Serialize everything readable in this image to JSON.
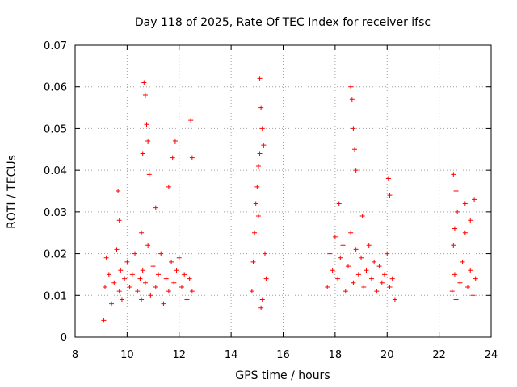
{
  "chart_data": {
    "type": "scatter",
    "title": "Day 118 of 2025, Rate Of TEC Index for receiver ifsc",
    "xlabel": "GPS time / hours",
    "ylabel": "ROTI / TECUs",
    "xlim": [
      8,
      24
    ],
    "ylim": [
      0,
      0.07
    ],
    "xticks": [
      "8",
      "10",
      "12",
      "14",
      "16",
      "18",
      "20",
      "22",
      "24"
    ],
    "yticks": [
      "0",
      "0.01",
      "0.02",
      "0.03",
      "0.04",
      "0.05",
      "0.06",
      "0.07"
    ],
    "grid": true,
    "marker": "plus",
    "color": "#ff0000",
    "series": [
      {
        "name": "ROTI",
        "x": [
          9.1,
          9.15,
          9.2,
          9.3,
          9.4,
          9.5,
          9.6,
          9.7,
          9.75,
          9.8,
          9.9,
          10.0,
          10.1,
          10.2,
          10.3,
          10.4,
          10.5,
          10.55,
          10.6,
          10.7,
          10.8,
          10.9,
          11.0,
          11.1,
          11.2,
          11.3,
          11.4,
          11.5,
          11.6,
          11.7,
          11.8,
          11.9,
          12.0,
          12.1,
          12.2,
          12.3,
          12.4,
          12.5,
          10.6,
          10.65,
          10.7,
          10.75,
          10.8,
          10.85,
          11.6,
          11.75,
          11.85,
          12.45,
          12.5,
          9.65,
          9.7,
          10.55,
          11.1,
          14.8,
          14.85,
          14.9,
          14.95,
          15.0,
          15.05,
          15.1,
          15.15,
          15.2,
          15.25,
          15.3,
          15.35,
          15.1,
          15.2,
          15.15,
          15.05,
          17.7,
          17.8,
          17.9,
          18.0,
          18.1,
          18.2,
          18.3,
          18.4,
          18.5,
          18.6,
          18.7,
          18.8,
          18.9,
          19.0,
          19.1,
          19.2,
          19.3,
          19.4,
          19.5,
          19.6,
          19.7,
          19.8,
          19.9,
          20.0,
          20.1,
          20.2,
          20.3,
          18.6,
          18.65,
          18.7,
          18.75,
          18.8,
          18.15,
          20.05,
          20.1,
          19.05,
          22.5,
          22.55,
          22.6,
          22.65,
          22.7,
          22.8,
          22.9,
          23.0,
          23.1,
          23.2,
          23.3,
          23.4,
          22.55,
          22.65,
          23.0,
          23.2,
          23.35,
          22.6
        ],
        "y": [
          0.004,
          0.012,
          0.019,
          0.015,
          0.008,
          0.013,
          0.021,
          0.011,
          0.016,
          0.009,
          0.014,
          0.018,
          0.012,
          0.015,
          0.02,
          0.011,
          0.014,
          0.009,
          0.016,
          0.013,
          0.022,
          0.01,
          0.017,
          0.012,
          0.015,
          0.02,
          0.008,
          0.014,
          0.011,
          0.018,
          0.013,
          0.016,
          0.019,
          0.012,
          0.015,
          0.009,
          0.014,
          0.011,
          0.044,
          0.061,
          0.058,
          0.051,
          0.047,
          0.039,
          0.036,
          0.043,
          0.047,
          0.052,
          0.043,
          0.035,
          0.028,
          0.025,
          0.031,
          0.011,
          0.018,
          0.025,
          0.032,
          0.036,
          0.041,
          0.044,
          0.055,
          0.05,
          0.046,
          0.02,
          0.014,
          0.062,
          0.009,
          0.007,
          0.029,
          0.012,
          0.02,
          0.016,
          0.024,
          0.014,
          0.019,
          0.022,
          0.011,
          0.017,
          0.025,
          0.013,
          0.021,
          0.015,
          0.019,
          0.012,
          0.016,
          0.022,
          0.014,
          0.018,
          0.011,
          0.017,
          0.013,
          0.015,
          0.02,
          0.012,
          0.014,
          0.009,
          0.06,
          0.057,
          0.05,
          0.045,
          0.04,
          0.032,
          0.038,
          0.034,
          0.029,
          0.011,
          0.022,
          0.015,
          0.009,
          0.03,
          0.013,
          0.018,
          0.025,
          0.012,
          0.016,
          0.01,
          0.014,
          0.039,
          0.035,
          0.032,
          0.028,
          0.033,
          0.026
        ]
      }
    ]
  }
}
